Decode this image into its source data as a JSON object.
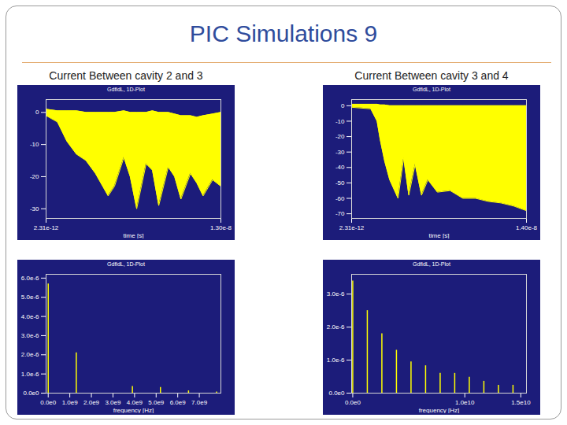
{
  "slide": {
    "title": "PIC Simulations 9",
    "column_headers": [
      "Current Between cavity 2 and 3",
      "Current Between cavity 3 and 4"
    ]
  },
  "chart_data": [
    {
      "type": "area",
      "title": "GdfidL, 1D-Plot",
      "xlabel": "time [s]",
      "color": "#ffff00",
      "x": [
        2.31e-12,
        8.5e-10,
        1.55e-09,
        2.26e-09,
        2.97e-09,
        3.67e-09,
        4.62e-09,
        5.09e-09,
        5.79e-09,
        6.26e-09,
        6.74e-09,
        7.44e-09,
        7.91e-09,
        8.38e-09,
        9.09e-09,
        9.56e-09,
        1.003e-08,
        1.074e-08,
        1.121e-08,
        1.168e-08,
        1.239e-08,
        1.3e-08
      ],
      "y_min": [
        -1,
        -3,
        -9,
        -13,
        -15,
        -19,
        -26,
        -23,
        -14,
        -20,
        -30,
        -16,
        -18,
        -29,
        -17,
        -20,
        -27,
        -19,
        -22,
        -26,
        -21,
        -23
      ],
      "y_max": [
        1,
        0.5,
        0.5,
        0.5,
        0,
        0,
        0,
        0,
        0.5,
        0,
        0,
        0,
        0.5,
        0,
        0,
        -0.5,
        -1,
        -1,
        -1.5,
        -1,
        -0.5,
        0
      ],
      "xlim": [
        2.31e-12,
        1.3e-08
      ],
      "xticks": [
        {
          "value": 2.31e-12,
          "label": "2.31e-12"
        },
        {
          "value": 1.3e-08,
          "label": "1.30e-8"
        }
      ],
      "ylim": [
        -33,
        4
      ],
      "yticks": [
        0,
        -10,
        -20,
        -30
      ]
    },
    {
      "type": "area",
      "title": "GdfidL, 1D-Plot",
      "xlabel": "time [s]",
      "color": "#ffff00",
      "x": [
        2.31e-12,
        1.53e-09,
        2.04e-09,
        2.29e-09,
        2.65e-09,
        3.05e-09,
        3.72e-09,
        4.17e-09,
        4.58e-09,
        5.09e-09,
        5.6e-09,
        6.11e-09,
        6.87e-09,
        7.89e-09,
        8.91e-09,
        9.93e-09,
        1.094e-08,
        1.196e-08,
        1.298e-08,
        1.4e-08
      ],
      "y_min": [
        -1,
        -2,
        -10,
        -22,
        -36,
        -48,
        -60,
        -34,
        -58,
        -38,
        -58,
        -48,
        -56,
        -55,
        -60,
        -60,
        -62,
        -63,
        -65,
        -68
      ],
      "y_max": [
        1,
        1,
        1,
        0.5,
        0.5,
        0,
        0,
        0,
        0,
        0,
        0,
        0,
        0,
        0,
        0,
        0,
        0,
        0,
        0,
        0
      ],
      "xlim": [
        2.31e-12,
        1.4e-08
      ],
      "xticks": [
        {
          "value": 2.31e-12,
          "label": "2.31e-12"
        },
        {
          "value": 1.4e-08,
          "label": "1.40e-8"
        }
      ],
      "ylim": [
        -73,
        4
      ],
      "yticks": [
        0,
        -10,
        -20,
        -30,
        -40,
        -50,
        -60,
        -70
      ]
    },
    {
      "type": "bar",
      "title": "GdfidL, 1D-Plot",
      "xlabel": "frequency [Hz]",
      "color": "#ffff00",
      "x": [
        0,
        1300000000.0,
        3900000000.0,
        5200000000.0,
        6500000000.0,
        7800000000.0
      ],
      "values": [
        5.7e-06,
        2.1e-06,
        3.5e-07,
        3e-07,
        1.2e-07,
        6e-08
      ],
      "xlim": [
        -100000000.0,
        8000000000.0
      ],
      "xticks": [
        {
          "value": 0,
          "label": "0.0e0"
        },
        {
          "value": 1000000000.0,
          "label": "1.0e9"
        },
        {
          "value": 2000000000.0,
          "label": "2.0e9"
        },
        {
          "value": 3000000000.0,
          "label": "3.0e9"
        },
        {
          "value": 4000000000.0,
          "label": "4.0e9"
        },
        {
          "value": 5000000000.0,
          "label": "5.0e9"
        },
        {
          "value": 6000000000.0,
          "label": "6.0e9"
        },
        {
          "value": 7000000000.0,
          "label": "7.0e9"
        }
      ],
      "ylim": [
        0,
        6.2e-06
      ],
      "yticks": [
        {
          "value": 0,
          "label": "0.0e0"
        },
        {
          "value": 1e-06,
          "label": "1.0e-6"
        },
        {
          "value": 2e-06,
          "label": "2.0e-6"
        },
        {
          "value": 3e-06,
          "label": "3.0e-6"
        },
        {
          "value": 4e-06,
          "label": "4.0e-6"
        },
        {
          "value": 5e-06,
          "label": "5.0e-6"
        },
        {
          "value": 6e-06,
          "label": "6.0e-6"
        }
      ]
    },
    {
      "type": "bar",
      "title": "GdfidL, 1D-Plot",
      "xlabel": "frequency [Hz]",
      "color": "#ffff00",
      "x": [
        0,
        1300000000.0,
        2600000000.0,
        3900000000.0,
        5200000000.0,
        6500000000.0,
        7800000000.0,
        9100000000.0,
        10400000000.0,
        11700000000.0,
        13000000000.0,
        14300000000.0
      ],
      "values": [
        3.4e-06,
        2.5e-06,
        1.8e-06,
        1.3e-06,
        9.5e-07,
        8.3e-07,
        6e-07,
        6e-07,
        4.8e-07,
        3.6e-07,
        2.4e-07,
        2.4e-07
      ],
      "xlim": [
        -100000000.0,
        15500000000.0
      ],
      "xticks": [
        {
          "value": 0,
          "label": "0.0e0"
        },
        {
          "value": 10000000000.0,
          "label": "1.0e10"
        },
        {
          "value": 15000000000.0,
          "label": "1.5e10"
        }
      ],
      "ylim": [
        0,
        3.6e-06
      ],
      "yticks": [
        {
          "value": 0,
          "label": "0.0e0"
        },
        {
          "value": 1e-06,
          "label": "1.0e-6"
        },
        {
          "value": 2e-06,
          "label": "2.0e-6"
        },
        {
          "value": 3e-06,
          "label": "3.0e-6"
        }
      ]
    }
  ]
}
